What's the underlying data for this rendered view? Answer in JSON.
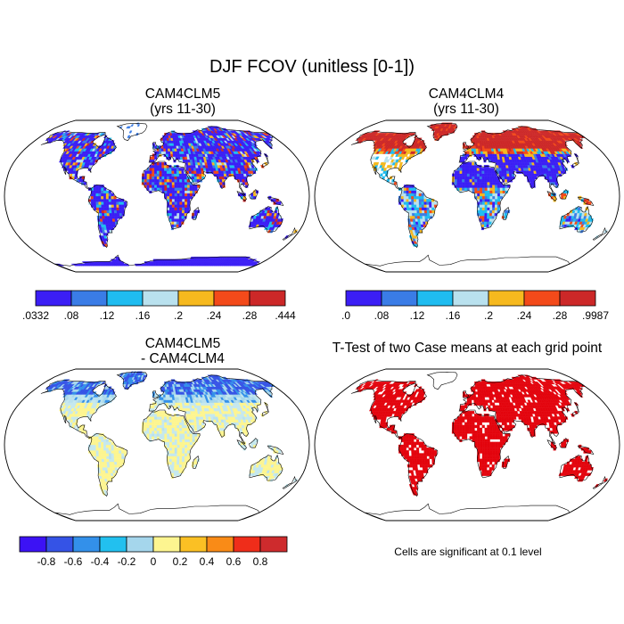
{
  "title": "DJF FCOV (unitless [0-1])",
  "chart_data": [
    {
      "type": "heatmap",
      "panel": "top-left",
      "title": "CAM4CLM5",
      "subtitle": "(yrs 11-30)",
      "projection": "robinson",
      "colorbar": {
        "labels": [
          ".0332",
          ".08",
          ".12",
          ".16",
          ".2",
          ".24",
          ".28",
          ".444"
        ],
        "levels": [
          0.0332,
          0.08,
          0.12,
          0.16,
          0.2,
          0.24,
          0.28,
          0.444
        ],
        "colors": [
          "#3b1ef5",
          "#3a7ce6",
          "#1fbcf0",
          "#b9e1ee",
          "#f6b91e",
          "#f34a1a",
          "#cc2828"
        ]
      }
    },
    {
      "type": "heatmap",
      "panel": "top-right",
      "title": "CAM4CLM4",
      "subtitle": "(yrs 11-30)",
      "projection": "robinson",
      "colorbar": {
        "labels": [
          ".0",
          ".08",
          ".12",
          ".16",
          ".2",
          ".24",
          ".28",
          ".9987"
        ],
        "levels": [
          0.0,
          0.08,
          0.12,
          0.16,
          0.2,
          0.24,
          0.28,
          0.9987
        ],
        "colors": [
          "#3b1ef5",
          "#3a7ce6",
          "#1fbcf0",
          "#b9e1ee",
          "#f6b91e",
          "#f34a1a",
          "#cc2828"
        ]
      }
    },
    {
      "type": "heatmap",
      "panel": "bottom-left",
      "title": "CAM4CLM5",
      "subtitle": "- CAM4CLM4",
      "projection": "robinson",
      "colorbar": {
        "labels": [
          "-0.8",
          "-0.6",
          "-0.4",
          "-0.2",
          "0",
          "0.2",
          "0.4",
          "0.6",
          "0.8"
        ],
        "levels": [
          -0.8,
          -0.6,
          -0.4,
          -0.2,
          0,
          0.2,
          0.4,
          0.6,
          0.8
        ],
        "colors": [
          "#3c12f5",
          "#3553e6",
          "#3390ea",
          "#22c0ef",
          "#a5d6ec",
          "#fdf590",
          "#fbc024",
          "#f98b17",
          "#ef2d1a",
          "#ce2b2d"
        ]
      }
    },
    {
      "type": "heatmap",
      "panel": "bottom-right",
      "title": "T-Test of two Case means at each grid point",
      "projection": "robinson",
      "note": "Cells are significant at 0.1 level",
      "color": "#e3040d"
    }
  ]
}
